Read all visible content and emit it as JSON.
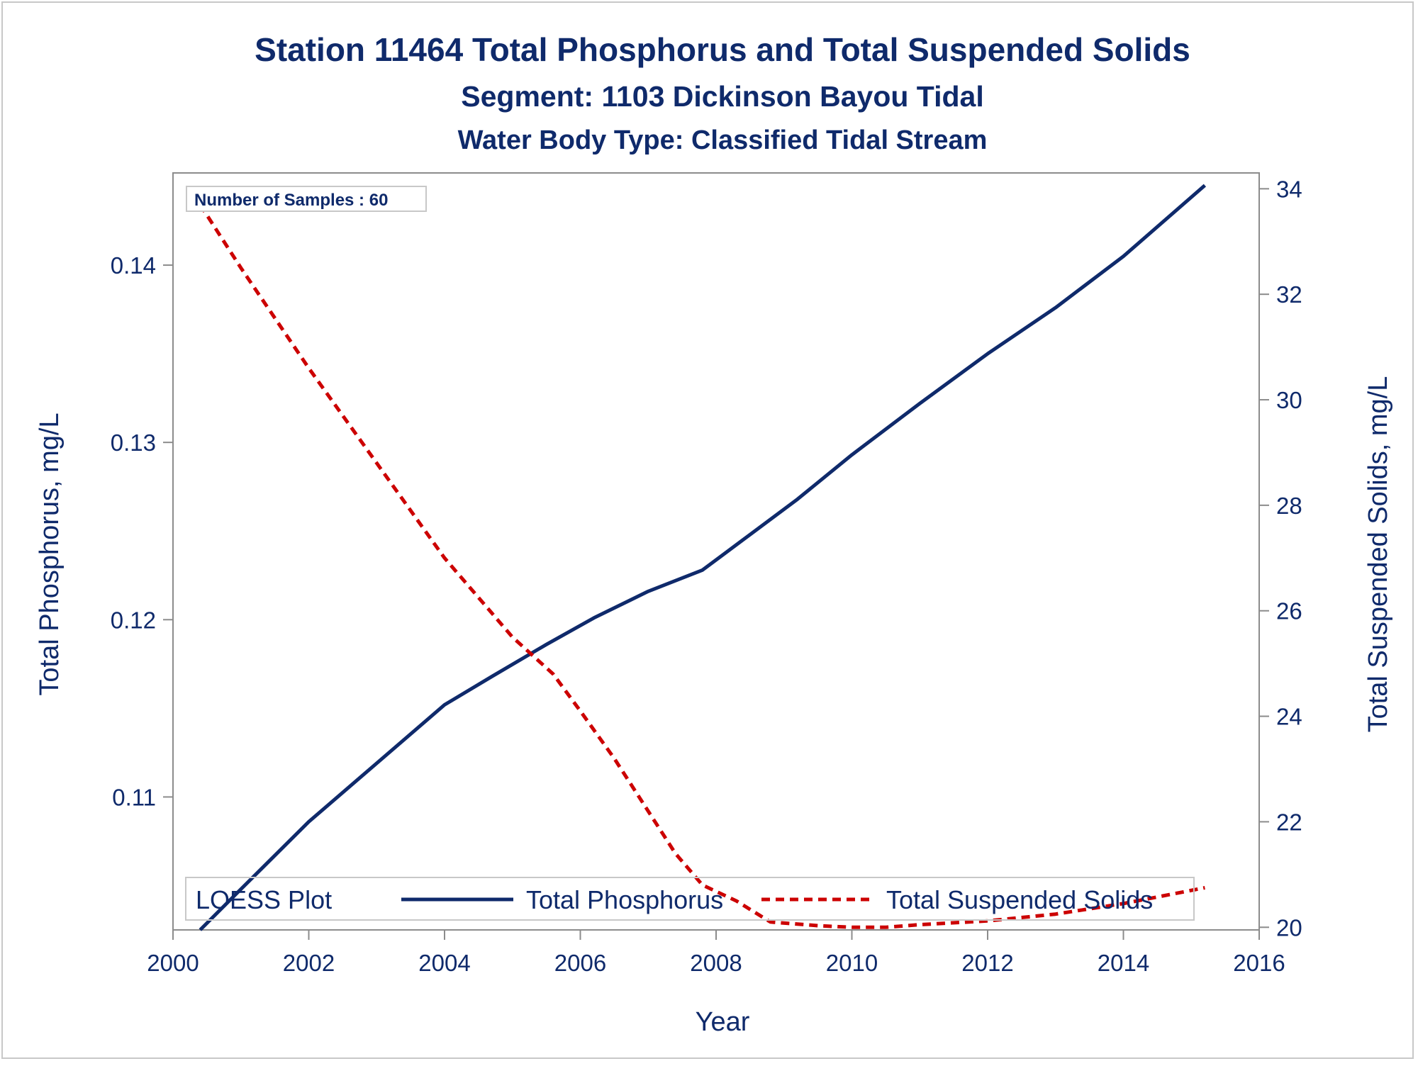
{
  "chart_data": {
    "type": "line",
    "title": "Station 11464  Total Phosphorus and Total Suspended Solids",
    "subtitle": "Segment: 1103  Dickinson Bayou Tidal",
    "subtitle2": "Water Body Type: Classified Tidal Stream",
    "xlabel": "Year",
    "ylabel_left": "Total Phosphorus, mg/L",
    "ylabel_right": "Total Suspended Solids, mg/L",
    "xlim": [
      2000,
      2016
    ],
    "ylim_left": [
      0.1025,
      0.1452
    ],
    "ylim_right": [
      19.95,
      34.3
    ],
    "x_ticks": [
      "2000",
      "2002",
      "2004",
      "2006",
      "2008",
      "2010",
      "2012",
      "2014",
      "2016"
    ],
    "y_left_ticks": [
      "0.11",
      "0.12",
      "0.13",
      "0.14"
    ],
    "y_right_ticks": [
      "20",
      "22",
      "24",
      "26",
      "28",
      "30",
      "32",
      "34"
    ],
    "annotation": "Number of Samples : 60",
    "legend": {
      "title": "LOESS Plot",
      "placement": "bottom-inside",
      "entries": [
        "Total Phosphorus",
        "Total Suspended Solids"
      ]
    },
    "series": [
      {
        "name": "Total Phosphorus",
        "axis": "left",
        "color": "#0f2a6b",
        "style": "solid",
        "x": [
          2000.4,
          2001,
          2002,
          2003,
          2004,
          2004.7,
          2005.5,
          2006.2,
          2007,
          2007.8,
          2008.5,
          2009.2,
          2010,
          2011,
          2012,
          2013,
          2014,
          2015.2
        ],
        "y": [
          0.1025,
          0.1048,
          0.1086,
          0.1119,
          0.1152,
          0.1168,
          0.1186,
          0.1201,
          0.1216,
          0.1228,
          0.1248,
          0.1268,
          0.1293,
          0.1322,
          0.135,
          0.1376,
          0.1405,
          0.1445
        ]
      },
      {
        "name": "Total Suspended Solids",
        "axis": "right",
        "color": "#cc0000",
        "style": "dashed",
        "x": [
          2000.4,
          2001,
          2002,
          2003,
          2004,
          2005,
          2005.6,
          2006,
          2006.5,
          2007,
          2007.4,
          2007.8,
          2008.3,
          2008.8,
          2009.5,
          2010,
          2010.5,
          2011,
          2012,
          2013,
          2014,
          2015.2
        ],
        "y": [
          33.7,
          32.5,
          30.6,
          28.8,
          27.0,
          25.5,
          24.8,
          24.1,
          23.2,
          22.2,
          21.4,
          20.8,
          20.5,
          20.1,
          20.03,
          20.0,
          20.0,
          20.05,
          20.12,
          20.25,
          20.45,
          20.75
        ]
      }
    ]
  }
}
